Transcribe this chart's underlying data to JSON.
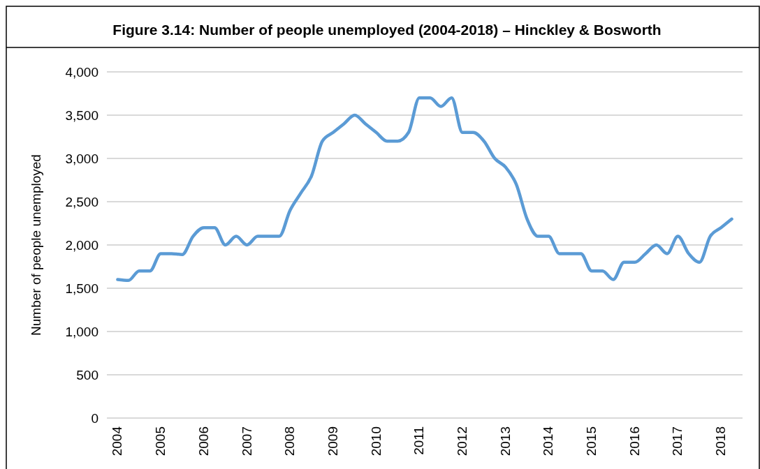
{
  "chart_data": {
    "type": "line",
    "title": "Figure 3.14: Number of people unemployed (2004-2018) – Hinckley & Bosworth",
    "ylabel": "Number of people unemployed",
    "categories": [
      "2004",
      null,
      null,
      null,
      "2005",
      null,
      null,
      null,
      "2006",
      null,
      null,
      null,
      "2007",
      null,
      null,
      null,
      "2008",
      null,
      null,
      null,
      "2009",
      null,
      null,
      null,
      "2010",
      null,
      null,
      null,
      "2011",
      null,
      null,
      null,
      "2012",
      null,
      null,
      null,
      "2013",
      null,
      null,
      null,
      "2014",
      null,
      null,
      null,
      "2015",
      null,
      null,
      null,
      "2016",
      null,
      null,
      null,
      "2017",
      null,
      null,
      null,
      "2018",
      null
    ],
    "series": [
      {
        "color": "#5b9bd5",
        "values": [
          1600,
          1590,
          1700,
          1700,
          1900,
          1900,
          1890,
          2100,
          2200,
          2200,
          2000,
          2100,
          2000,
          2100,
          2100,
          2100,
          2400,
          2600,
          2800,
          3200,
          3300,
          3400,
          3500,
          3400,
          3300,
          3200,
          3200,
          3300,
          3700,
          3700,
          3600,
          3700,
          3300,
          3300,
          3200,
          3000,
          2900,
          2700,
          2300,
          2100,
          2100,
          1900,
          1900,
          1900,
          1700,
          1700,
          1600,
          1800,
          1800,
          1900,
          2000,
          1900,
          2100,
          1900,
          1800,
          2100,
          2200,
          2300
        ]
      }
    ],
    "ylim": [
      0,
      4000
    ],
    "yticks": [
      {
        "value": 0,
        "label": "0"
      },
      {
        "value": 500,
        "label": "500"
      },
      {
        "value": 1000,
        "label": "1,000"
      },
      {
        "value": 1500,
        "label": "1,500"
      },
      {
        "value": 2000,
        "label": "2,000"
      },
      {
        "value": 2500,
        "label": "2,500"
      },
      {
        "value": 3000,
        "label": "3,000"
      },
      {
        "value": 3500,
        "label": "3,500"
      },
      {
        "value": 4000,
        "label": "4,000"
      }
    ],
    "grid": "y",
    "line_style": "solid",
    "marker": "none"
  }
}
